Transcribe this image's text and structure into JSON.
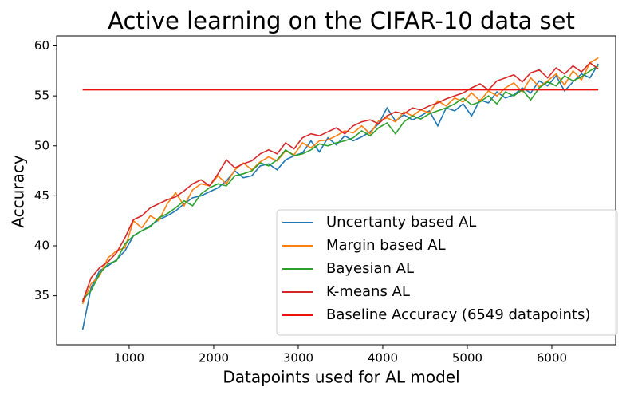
{
  "chart_data": {
    "type": "line",
    "title": "Active learning on the CIFAR-10 data set",
    "xlabel": "Datapoints used for AL model",
    "ylabel": "Accuracy",
    "x": [
      450,
      550,
      650,
      750,
      850,
      950,
      1050,
      1150,
      1250,
      1350,
      1450,
      1550,
      1650,
      1750,
      1850,
      1950,
      2050,
      2150,
      2250,
      2350,
      2450,
      2550,
      2650,
      2750,
      2850,
      2950,
      3050,
      3150,
      3250,
      3350,
      3450,
      3550,
      3650,
      3750,
      3850,
      3950,
      4050,
      4150,
      4250,
      4350,
      4450,
      4550,
      4650,
      4750,
      4850,
      4950,
      5050,
      5150,
      5250,
      5350,
      5450,
      5550,
      5650,
      5750,
      5850,
      5950,
      6050,
      6150,
      6250,
      6350,
      6450,
      6550
    ],
    "series": [
      {
        "name": "Uncertanty based AL",
        "color": "#1f77b4",
        "values": [
          31.6,
          35.8,
          37.5,
          38,
          38.6,
          39.5,
          41,
          41.5,
          42,
          42.6,
          43,
          43.5,
          44.2,
          44.8,
          45,
          45.4,
          45.8,
          46.5,
          47.5,
          46.8,
          47,
          48,
          48.2,
          47.6,
          48.6,
          49,
          49.3,
          50.5,
          49.4,
          50.8,
          50.1,
          51,
          50.5,
          50.9,
          51.4,
          52.2,
          53.8,
          52.5,
          53.1,
          52.6,
          53,
          53.5,
          52,
          53.8,
          53.5,
          54.2,
          53,
          54.6,
          54.3,
          55.4,
          54.8,
          55.1,
          55.8,
          55.3,
          56.5,
          56,
          57,
          55.5,
          56.4,
          57.2,
          56.8,
          58.2
        ]
      },
      {
        "name": "Margin based AL",
        "color": "#ff7f0e",
        "values": [
          34.2,
          36.2,
          37,
          38.8,
          39.5,
          39.8,
          42.5,
          41.8,
          43,
          42.5,
          44.2,
          45.3,
          44,
          45.6,
          46.2,
          46,
          47,
          46.2,
          47.6,
          48.3,
          47.6,
          48.4,
          48.9,
          48.5,
          49.5,
          49.1,
          50.3,
          49.8,
          50.5,
          50.6,
          51,
          51.5,
          51.3,
          52,
          51.2,
          52.5,
          52.8,
          52.4,
          53.4,
          53,
          53.6,
          53.3,
          54.5,
          54,
          54.8,
          54.4,
          55.3,
          54.5,
          55.5,
          55,
          55.8,
          56.3,
          55.4,
          56.8,
          55.9,
          56.5,
          57.2,
          56.1,
          57.5,
          56.6,
          58.3,
          58.8
        ]
      },
      {
        "name": "Bayesian AL",
        "color": "#2ca02c",
        "values": [
          34.6,
          35.5,
          37.2,
          38.2,
          38.5,
          40.2,
          41,
          41.5,
          41.9,
          42.8,
          43.2,
          43.8,
          44.5,
          44,
          45.2,
          45.8,
          46.2,
          46,
          47,
          47.2,
          47.5,
          48.3,
          48,
          48.6,
          49.6,
          49,
          49.2,
          49.6,
          50.2,
          50,
          50.3,
          50.5,
          50.8,
          51.5,
          51,
          51.8,
          52.3,
          51.2,
          52.4,
          53,
          52.7,
          53.2,
          53.5,
          53.8,
          54.2,
          54.8,
          54.1,
          54.4,
          55,
          54.2,
          55.4,
          55,
          55.6,
          54.6,
          55.8,
          56.4,
          56,
          57,
          56.5,
          56.9,
          57.5,
          58
        ]
      },
      {
        "name": "K-means AL",
        "color": "#d62728",
        "values": [
          34.4,
          36.8,
          37.8,
          38.4,
          39.3,
          40.8,
          42.6,
          43,
          43.8,
          44.2,
          44.6,
          44.9,
          45.5,
          46.2,
          46.6,
          46,
          47.2,
          48.6,
          47.8,
          48.2,
          48.5,
          49.2,
          49.6,
          49.2,
          50.3,
          49.7,
          50.8,
          51.2,
          51,
          51.4,
          51.8,
          51.2,
          52,
          52.4,
          52.6,
          52.2,
          53,
          53.4,
          53.2,
          53.8,
          53.6,
          54,
          54.3,
          54.7,
          55,
          55.3,
          55.8,
          56.2,
          55.6,
          56.5,
          56.8,
          57.1,
          56.4,
          57.3,
          57.6,
          56.8,
          57.8,
          57.2,
          58,
          57.4,
          58.3,
          57.7
        ]
      },
      {
        "name": "Baseline Accuracy (6549 datapoints)",
        "color": "#ee1111",
        "x": [
          450,
          6549
        ],
        "values": [
          55.6,
          55.6
        ]
      }
    ],
    "xlim": [
      142,
      6755
    ],
    "ylim": [
      30.1,
      61.0
    ],
    "xticks": [
      1000,
      2000,
      3000,
      4000,
      5000,
      6000
    ],
    "yticks": [
      35,
      40,
      45,
      50,
      55,
      60
    ],
    "legend": "lower right"
  }
}
